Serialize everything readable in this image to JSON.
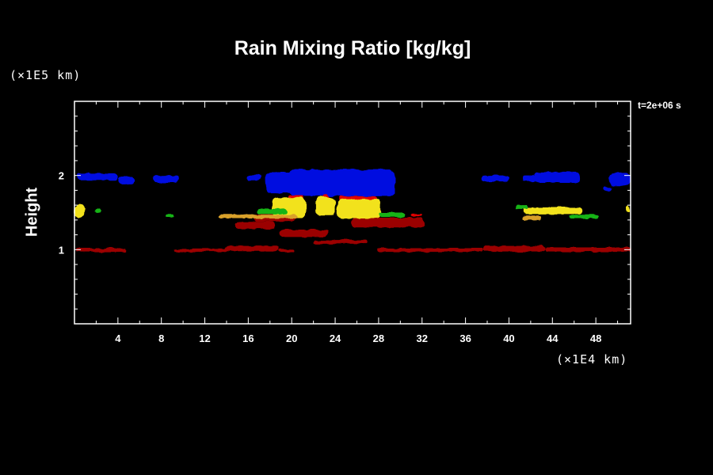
{
  "chart_data": {
    "type": "heatmap",
    "title": "Rain Mixing Ratio [kg/kg]",
    "ylabel": "Height",
    "y_multiplier": "(×1E5 km)",
    "x_multiplier": "(×1E4 km)",
    "timestamp": "t=2e+06 s",
    "xlim": [
      0,
      51.2
    ],
    "ylim": [
      0,
      3
    ],
    "x_ticks": [
      "4",
      "8",
      "12",
      "16",
      "20",
      "24",
      "28",
      "32",
      "36",
      "40",
      "44",
      "48"
    ],
    "y_ticks": [
      "1",
      "2"
    ],
    "colors": {
      "background": "#000000",
      "blue": "#0010e0",
      "darkred": "#9b0606",
      "red": "#e00000",
      "yellow": "#f2e21a",
      "orange": "#d8a02a",
      "green": "#17b317",
      "axis": "#ffffff"
    },
    "regions": [
      {
        "color": "blue",
        "x": [
          0.2,
          4.0
        ],
        "y": [
          1.93,
          2.03
        ]
      },
      {
        "color": "blue",
        "x": [
          4.0,
          5.6
        ],
        "y": [
          1.88,
          1.98
        ]
      },
      {
        "color": "blue",
        "x": [
          7.3,
          9.6
        ],
        "y": [
          1.9,
          2.0
        ]
      },
      {
        "color": "blue",
        "x": [
          15.9,
          17.2
        ],
        "y": [
          1.93,
          2.01
        ]
      },
      {
        "color": "blue",
        "x": [
          17.6,
          21.2
        ],
        "y": [
          1.76,
          2.05
        ]
      },
      {
        "color": "blue",
        "x": [
          19.8,
          29.5
        ],
        "y": [
          1.72,
          2.08
        ]
      },
      {
        "color": "blue",
        "x": [
          27.6,
          29.2
        ],
        "y": [
          1.8,
          1.98
        ]
      },
      {
        "color": "blue",
        "x": [
          37.5,
          40.0
        ],
        "y": [
          1.92,
          2.0
        ]
      },
      {
        "color": "blue",
        "x": [
          41.2,
          42.5
        ],
        "y": [
          1.92,
          2.0
        ]
      },
      {
        "color": "blue",
        "x": [
          42.3,
          46.5
        ],
        "y": [
          1.9,
          2.04
        ]
      },
      {
        "color": "blue",
        "x": [
          49.2,
          51.2
        ],
        "y": [
          1.86,
          2.03
        ]
      },
      {
        "color": "blue",
        "x": [
          48.7,
          49.5
        ],
        "y": [
          1.79,
          1.85
        ]
      },
      {
        "color": "darkred",
        "x": [
          0.1,
          4.8
        ],
        "y": [
          0.97,
          1.02
        ]
      },
      {
        "color": "darkred",
        "x": [
          9.2,
          14.0
        ],
        "y": [
          0.97,
          1.01
        ]
      },
      {
        "color": "darkred",
        "x": [
          13.8,
          18.8
        ],
        "y": [
          0.98,
          1.05
        ]
      },
      {
        "color": "darkred",
        "x": [
          18.8,
          20.2
        ],
        "y": [
          0.97,
          1.01
        ]
      },
      {
        "color": "darkred",
        "x": [
          18.9,
          23.3
        ],
        "y": [
          1.17,
          1.27
        ]
      },
      {
        "color": "darkred",
        "x": [
          14.8,
          18.5
        ],
        "y": [
          1.28,
          1.38
        ]
      },
      {
        "color": "darkred",
        "x": [
          16.5,
          20.3
        ],
        "y": [
          1.38,
          1.48
        ]
      },
      {
        "color": "darkred",
        "x": [
          25.5,
          32.2
        ],
        "y": [
          1.3,
          1.43
        ]
      },
      {
        "color": "darkred",
        "x": [
          22.0,
          27.0
        ],
        "y": [
          1.08,
          1.13
        ]
      },
      {
        "color": "darkred",
        "x": [
          27.8,
          37.6
        ],
        "y": [
          0.97,
          1.02
        ]
      },
      {
        "color": "darkred",
        "x": [
          37.6,
          43.3
        ],
        "y": [
          0.97,
          1.05
        ]
      },
      {
        "color": "darkred",
        "x": [
          43.3,
          51.2
        ],
        "y": [
          0.97,
          1.03
        ]
      },
      {
        "color": "red",
        "x": [
          19.6,
          21.1
        ],
        "y": [
          1.67,
          1.73
        ]
      },
      {
        "color": "red",
        "x": [
          22.8,
          23.6
        ],
        "y": [
          1.6,
          1.75
        ]
      },
      {
        "color": "red",
        "x": [
          24.3,
          27.8
        ],
        "y": [
          1.64,
          1.72
        ]
      },
      {
        "color": "red",
        "x": [
          31.0,
          32.0
        ],
        "y": [
          1.45,
          1.48
        ]
      },
      {
        "color": "yellow",
        "x": [
          0.0,
          0.9
        ],
        "y": [
          1.43,
          1.6
        ]
      },
      {
        "color": "yellow",
        "x": [
          18.2,
          21.3
        ],
        "y": [
          1.43,
          1.7
        ]
      },
      {
        "color": "yellow",
        "x": [
          22.2,
          24.0
        ],
        "y": [
          1.47,
          1.71
        ]
      },
      {
        "color": "yellow",
        "x": [
          24.2,
          28.2
        ],
        "y": [
          1.42,
          1.68
        ]
      },
      {
        "color": "yellow",
        "x": [
          41.3,
          46.8
        ],
        "y": [
          1.48,
          1.57
        ]
      },
      {
        "color": "yellow",
        "x": [
          50.8,
          51.2
        ],
        "y": [
          1.5,
          1.6
        ]
      },
      {
        "color": "orange",
        "x": [
          13.3,
          20.5
        ],
        "y": [
          1.42,
          1.47
        ]
      },
      {
        "color": "orange",
        "x": [
          41.2,
          43.0
        ],
        "y": [
          1.4,
          1.46
        ]
      },
      {
        "color": "green",
        "x": [
          16.8,
          19.5
        ],
        "y": [
          1.48,
          1.55
        ]
      },
      {
        "color": "green",
        "x": [
          1.9,
          2.5
        ],
        "y": [
          1.48,
          1.56
        ]
      },
      {
        "color": "green",
        "x": [
          8.4,
          9.2
        ],
        "y": [
          1.43,
          1.47
        ]
      },
      {
        "color": "green",
        "x": [
          28.0,
          30.5
        ],
        "y": [
          1.44,
          1.5
        ]
      },
      {
        "color": "green",
        "x": [
          40.6,
          41.8
        ],
        "y": [
          1.55,
          1.6
        ]
      },
      {
        "color": "green",
        "x": [
          45.6,
          48.2
        ],
        "y": [
          1.42,
          1.47
        ]
      }
    ]
  }
}
